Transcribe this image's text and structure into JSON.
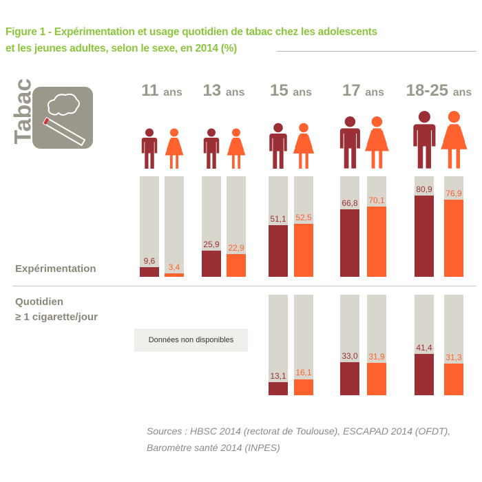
{
  "title_line1": "Figure 1 - Expérimentation et usage quotidien de tabac chez les adolescents",
  "title_line2": "et les jeunes adultes, selon le sexe, en 2014 (%)",
  "tabac_label": "Tabac",
  "colors": {
    "male": "#9a3035",
    "female": "#ff612f",
    "track": "#d9d6ce",
    "title": "#8cc63f"
  },
  "sections": {
    "exp": "Expérimentation",
    "quot1": "Quotidien",
    "quot2": "≥ 1 cigarette/jour"
  },
  "not_available": "Données non disponibles",
  "sources1": "Sources : HBSC 2014 (rectorat de Toulouse), ESCAPAD 2014 (OFDT),",
  "sources2": "Baromètre santé 2014 (INPES)",
  "chart_data": {
    "type": "bar",
    "categories": [
      "11",
      "13",
      "15",
      "17",
      "18-25"
    ],
    "category_suffix": "ans",
    "ylim": [
      0,
      100
    ],
    "panels": [
      {
        "name": "Expérimentation",
        "series": [
          {
            "name": "male",
            "values": [
              9.6,
              25.9,
              51.1,
              66.8,
              80.9
            ],
            "labels": [
              "9,6",
              "25,9",
              "51,1",
              "66,8",
              "80,9"
            ]
          },
          {
            "name": "female",
            "values": [
              3.4,
              22.9,
              52.5,
              70.1,
              76.9
            ],
            "labels": [
              "3,4",
              "22,9",
              "52,5",
              "70,1",
              "76,9"
            ]
          }
        ]
      },
      {
        "name": "Quotidien ≥ 1 cigarette/jour",
        "series": [
          {
            "name": "male",
            "values": [
              null,
              null,
              13.1,
              33.0,
              41.4
            ],
            "labels": [
              "",
              "",
              "13,1",
              "33,0",
              "41,4"
            ]
          },
          {
            "name": "female",
            "values": [
              null,
              null,
              16.1,
              31.9,
              31.3
            ],
            "labels": [
              "",
              "",
              "16,1",
              "31,9",
              "31,3"
            ]
          }
        ]
      }
    ]
  }
}
